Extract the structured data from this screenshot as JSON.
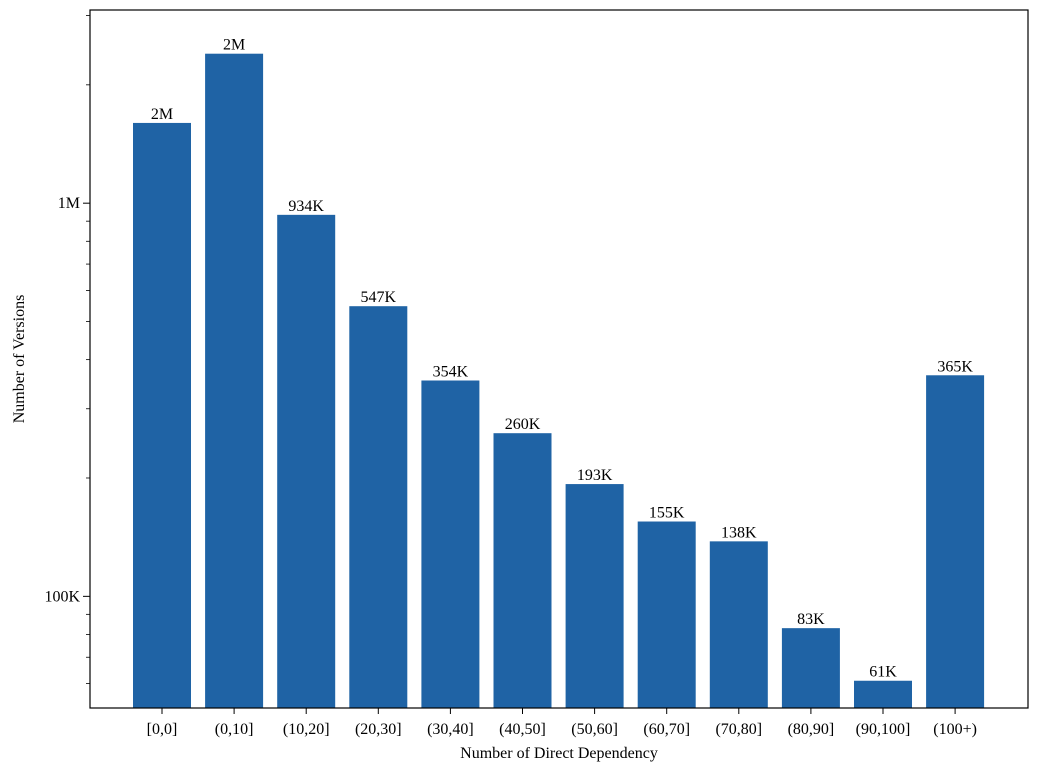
{
  "chart_data": {
    "type": "bar",
    "xlabel": "Number of Direct Dependency",
    "ylabel": "Number of Versions",
    "y_scale": "log",
    "ylim": [
      52000,
      3100000
    ],
    "grid": false,
    "bar_color": "#1f63a5",
    "categories": [
      "[0,0]",
      "(0,10]",
      "(10,20]",
      "(20,30]",
      "(30,40]",
      "(40,50]",
      "(50,60]",
      "(60,70]",
      "(70,80]",
      "(80,90]",
      "(90,100]",
      "(100+)"
    ],
    "values": [
      1600000,
      2400000,
      934000,
      547000,
      354000,
      260000,
      193000,
      155000,
      138000,
      83000,
      61000,
      365000
    ],
    "data_labels": [
      "2M",
      "2M",
      "934K",
      "547K",
      "354K",
      "260K",
      "193K",
      "155K",
      "138K",
      "83K",
      "61K",
      "365K"
    ],
    "y_ticks": [
      {
        "value": 100000,
        "label": "100K"
      },
      {
        "value": 1000000,
        "label": "1M"
      }
    ]
  }
}
